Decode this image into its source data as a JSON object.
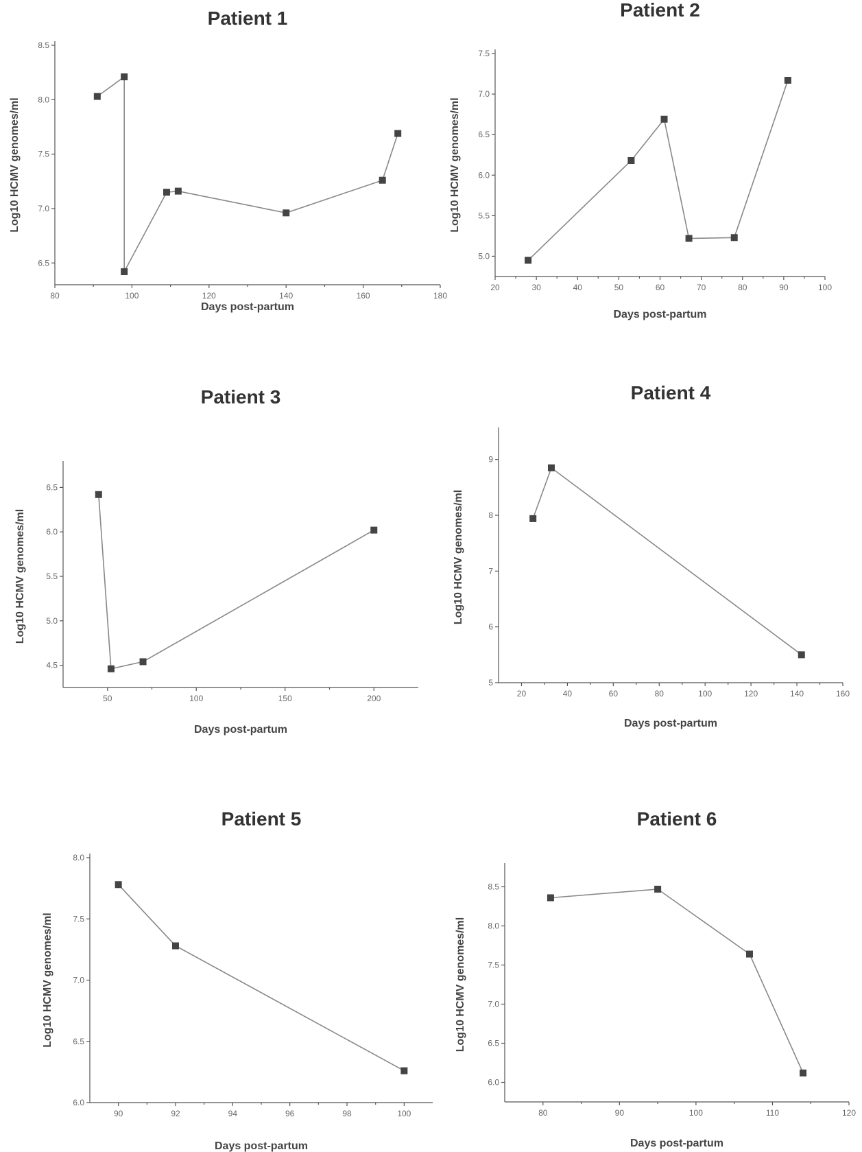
{
  "chart_data": [
    {
      "type": "line",
      "title": "Patient 1",
      "xlabel": "Days post-partum",
      "ylabel": "Log10 HCMV genomes/ml",
      "xlim": [
        80,
        180
      ],
      "ylim": [
        6.3,
        8.5
      ],
      "xticks": [
        80,
        100,
        120,
        140,
        160,
        180
      ],
      "yticks": [
        6.5,
        7.0,
        7.5,
        8.0,
        8.5
      ],
      "x": [
        91,
        98,
        98,
        109,
        112,
        140,
        165,
        169
      ],
      "y": [
        8.03,
        8.21,
        6.42,
        7.15,
        7.16,
        6.96,
        7.26,
        7.69
      ]
    },
    {
      "type": "line",
      "title": "Patient 2",
      "xlabel": "Days post-partum",
      "ylabel": "Log10 HCMV genomes/ml",
      "xlim": [
        20,
        100
      ],
      "ylim": [
        4.75,
        7.5
      ],
      "xticks": [
        20,
        30,
        40,
        50,
        60,
        70,
        80,
        90,
        100
      ],
      "yticks": [
        5.0,
        5.5,
        6.0,
        6.5,
        7.0,
        7.5
      ],
      "x": [
        28,
        53,
        61,
        67,
        78,
        91
      ],
      "y": [
        4.95,
        6.18,
        6.69,
        5.22,
        5.23,
        7.17
      ]
    },
    {
      "type": "line",
      "title": "Patient 3",
      "xlabel": "Days post-partum",
      "ylabel": "Log10 HCMV genomes/ml",
      "xlim": [
        25,
        225
      ],
      "ylim": [
        4.25,
        6.75
      ],
      "xticks": [
        50,
        100,
        150,
        200
      ],
      "yticks": [
        4.5,
        5.0,
        5.5,
        6.0,
        6.5
      ],
      "x": [
        45,
        52,
        70,
        200
      ],
      "y": [
        6.42,
        4.46,
        4.54,
        6.02
      ]
    },
    {
      "type": "line",
      "title": "Patient 4",
      "xlabel": "Days post-partum",
      "ylabel": "Log10 HCMV genomes/ml",
      "xlim": [
        10,
        160
      ],
      "ylim": [
        5,
        9.5
      ],
      "xticks": [
        20,
        40,
        60,
        80,
        100,
        120,
        140,
        160
      ],
      "yticks": [
        5,
        6,
        7,
        8,
        9
      ],
      "x": [
        25,
        33,
        142
      ],
      "y": [
        7.94,
        8.85,
        5.5
      ]
    },
    {
      "type": "line",
      "title": "Patient 5",
      "xlabel": "Days post-partum",
      "ylabel": "Log10 HCMV genomes/ml",
      "xlim": [
        89,
        101
      ],
      "ylim": [
        6.0,
        8.0
      ],
      "xticks": [
        90,
        92,
        94,
        96,
        98,
        100
      ],
      "yticks": [
        6.0,
        6.5,
        7.0,
        7.5,
        8.0
      ],
      "x": [
        90,
        92,
        100
      ],
      "y": [
        7.78,
        7.28,
        6.26
      ]
    },
    {
      "type": "line",
      "title": "Patient 6",
      "xlabel": "Days post-partum",
      "ylabel": "Log10 HCMV genomes/ml",
      "xlim": [
        75,
        120
      ],
      "ylim": [
        5.75,
        8.75
      ],
      "xticks": [
        80,
        90,
        100,
        110,
        120
      ],
      "yticks": [
        6.0,
        6.5,
        7.0,
        7.5,
        8.0,
        8.5
      ],
      "x": [
        81,
        95,
        107,
        114
      ],
      "y": [
        8.36,
        8.47,
        7.64,
        6.12
      ]
    }
  ]
}
